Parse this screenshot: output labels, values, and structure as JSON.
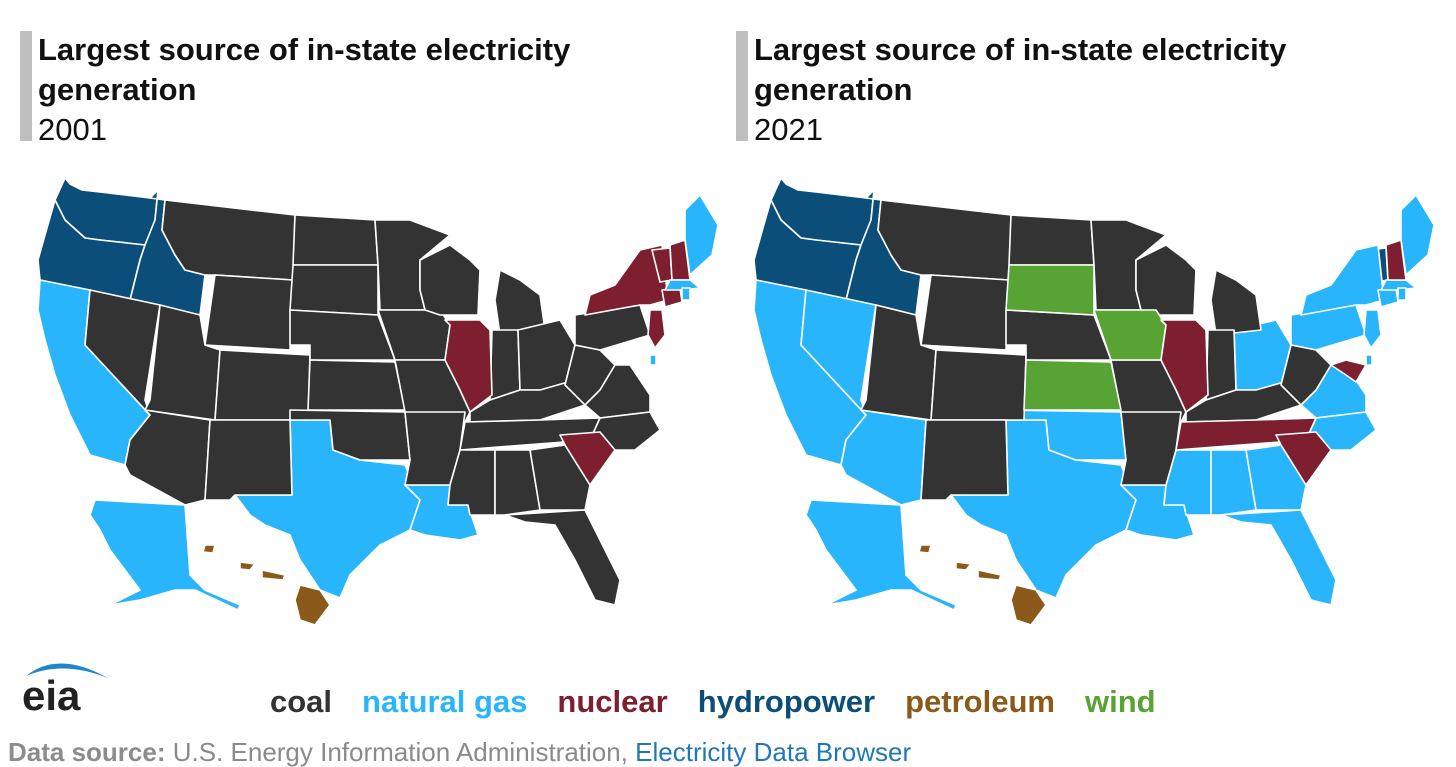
{
  "panels": [
    {
      "title": "Largest source of in-state electricity generation",
      "year": "2001"
    },
    {
      "title": "Largest source of in-state electricity generation",
      "year": "2021"
    }
  ],
  "colors": {
    "coal": "#333333",
    "natural_gas": "#29b5fb",
    "nuclear": "#7d1f2e",
    "hydropower": "#0c4e7a",
    "petroleum": "#8b5a1a",
    "wind": "#57a333",
    "title_bar": "#bfbfbf",
    "source_link": "#1f78b4"
  },
  "legend": [
    {
      "key": "coal",
      "label": "coal"
    },
    {
      "key": "natural_gas",
      "label": "natural gas"
    },
    {
      "key": "nuclear",
      "label": "nuclear"
    },
    {
      "key": "hydropower",
      "label": "hydropower"
    },
    {
      "key": "petroleum",
      "label": "petroleum"
    },
    {
      "key": "wind",
      "label": "wind"
    }
  ],
  "logo": {
    "text": "eia",
    "icon": "eia-logo-arc"
  },
  "source": {
    "label": "Data source:",
    "text": " U.S. Energy Information Administration, ",
    "link_text": "Electricity Data Browser"
  }
}
